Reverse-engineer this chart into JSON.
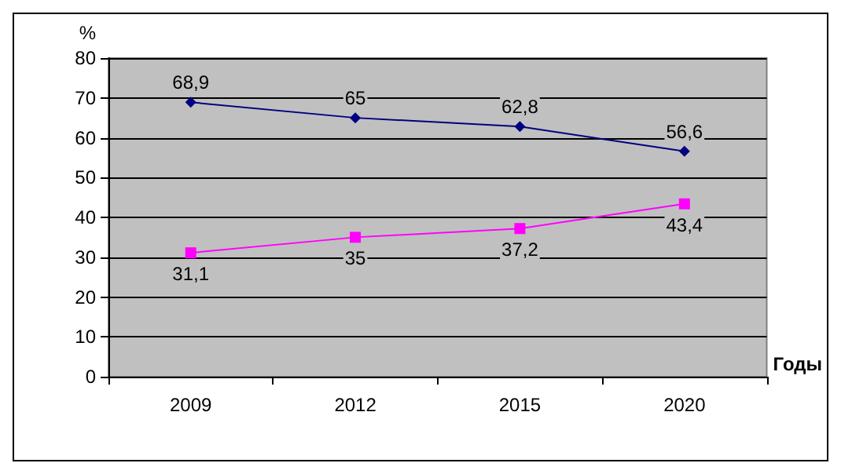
{
  "chart_data": {
    "type": "line",
    "ylabel": "%",
    "xlabel": "Годы",
    "categories": [
      "2009",
      "2012",
      "2015",
      "2020"
    ],
    "series": [
      {
        "color": "#000080",
        "marker": "diamond",
        "values": [
          68.9,
          65,
          62.8,
          56.6
        ],
        "value_labels": [
          "68,9",
          "65",
          "62,8",
          "56,6"
        ]
      },
      {
        "color": "#ff00ff",
        "marker": "square",
        "values": [
          31.1,
          35,
          37.2,
          43.4
        ],
        "value_labels": [
          "31,1",
          "35",
          "37,2",
          "43,4"
        ]
      }
    ],
    "ylim": [
      0,
      80
    ],
    "yticks": [
      0,
      10,
      20,
      30,
      40,
      50,
      60,
      70,
      80
    ],
    "grid": "y"
  }
}
